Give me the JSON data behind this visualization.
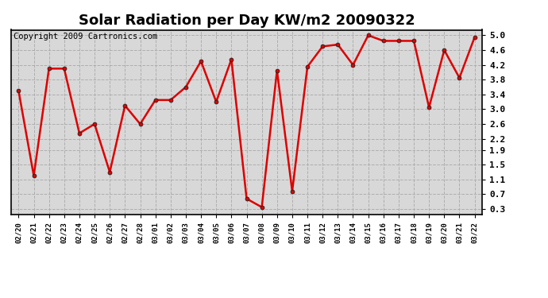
{
  "title": "Solar Radiation per Day KW/m2 20090322",
  "copyright": "Copyright 2009 Cartronics.com",
  "labels": [
    "02/20",
    "02/21",
    "02/22",
    "02/23",
    "02/24",
    "02/25",
    "02/26",
    "02/27",
    "02/28",
    "03/01",
    "03/02",
    "03/03",
    "03/04",
    "03/05",
    "03/06",
    "03/07",
    "03/08",
    "03/09",
    "03/10",
    "03/11",
    "03/12",
    "03/13",
    "03/14",
    "03/15",
    "03/16",
    "03/17",
    "03/18",
    "03/19",
    "03/20",
    "03/21",
    "03/22"
  ],
  "values": [
    3.5,
    1.2,
    4.1,
    4.1,
    2.35,
    2.6,
    1.3,
    3.1,
    2.6,
    3.25,
    3.25,
    3.6,
    4.3,
    3.2,
    4.35,
    0.58,
    0.35,
    4.05,
    0.78,
    4.15,
    4.7,
    4.75,
    4.2,
    5.0,
    4.85,
    4.85,
    4.85,
    3.05,
    4.6,
    3.85,
    4.95
  ],
  "line_color": "#dd0000",
  "marker_size": 3.5,
  "bg_color": "#d8d8d8",
  "grid_color": "#aaaaaa",
  "yticks": [
    0.3,
    0.7,
    1.1,
    1.5,
    1.9,
    2.2,
    2.6,
    3.0,
    3.4,
    3.8,
    4.2,
    4.6,
    5.0
  ],
  "ylim": [
    0.15,
    5.15
  ],
  "title_fontsize": 13,
  "copyright_fontsize": 7.5
}
